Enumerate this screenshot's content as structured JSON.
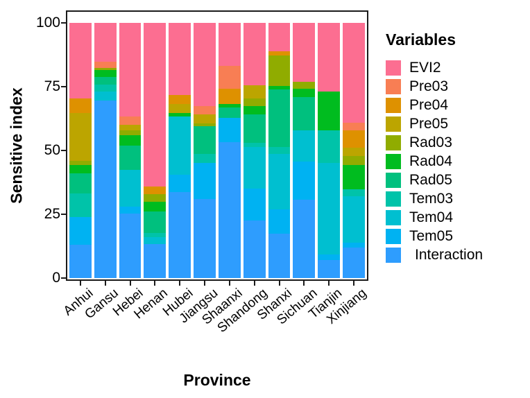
{
  "y_axis": {
    "title": "Sensitive index",
    "tick_values": [
      0,
      25,
      50,
      75,
      100
    ]
  },
  "x_axis": {
    "title": "Province"
  },
  "legend": {
    "title": "Variables",
    "position": "right"
  },
  "chart_data": {
    "type": "bar",
    "stacked": true,
    "title": "",
    "xlabel": "Province",
    "ylabel": "Sensitive index",
    "ylim": [
      0,
      100
    ],
    "y_ticks": [
      0,
      25,
      50,
      75,
      100
    ],
    "grid": false,
    "legend_title": "Variables",
    "legend_position": "right",
    "categories": [
      "Anhui",
      "Gansu",
      "Hebei",
      "Henan",
      "Hubei",
      "Jiangsu",
      "Shaanxi",
      "Shandong",
      "Shanxi",
      "Sichuan",
      "Tianjin",
      "Xinjiang"
    ],
    "series": [
      {
        "name": "EVI2",
        "color": "#FC6E91",
        "values": [
          29.5,
          15.3,
          36.8,
          64.0,
          28.2,
          32.7,
          16.8,
          24.4,
          11.2,
          23.2,
          26.8,
          39.0
        ]
      },
      {
        "name": "Pre03",
        "color": "#F87E54",
        "values": [
          0,
          2.4,
          3.1,
          0,
          0,
          3.2,
          9.1,
          0,
          0,
          0,
          0,
          3.2
        ]
      },
      {
        "name": "Pre04",
        "color": "#DE9100",
        "values": [
          5.9,
          0,
          0,
          3.0,
          3.6,
          0,
          5.9,
          0,
          1.6,
          0,
          0,
          6.8
        ]
      },
      {
        "name": "Pre05",
        "color": "#BCA500",
        "values": [
          18.6,
          0,
          2.3,
          0,
          3.6,
          3.6,
          0,
          5.1,
          0,
          0,
          0,
          3.2
        ]
      },
      {
        "name": "Rad03",
        "color": "#90AC00",
        "values": [
          1.8,
          0.9,
          1.8,
          3.2,
          0,
          1.0,
          0,
          3.0,
          11.8,
          2.7,
          0,
          3.6
        ]
      },
      {
        "name": "Rad04",
        "color": "#00BC1F",
        "values": [
          3.2,
          2.7,
          4.1,
          3.8,
          1.4,
          0,
          1.4,
          3.4,
          1.4,
          3.2,
          15.4,
          9.5
        ]
      },
      {
        "name": "Rad05",
        "color": "#00C07E",
        "values": [
          7.8,
          2.8,
          9.5,
          8.2,
          0,
          10.8,
          4.1,
          11.0,
          22.6,
          13.1,
          0,
          0
        ]
      },
      {
        "name": "Tem03",
        "color": "#00C3A9",
        "values": [
          9.3,
          2.8,
          0,
          1.8,
          0,
          3.6,
          0,
          1.8,
          2.7,
          0,
          12.7,
          2.7
        ]
      },
      {
        "name": "Tem04",
        "color": "#00BFD0",
        "values": [
          0,
          3.5,
          14.5,
          2.8,
          22.6,
          0,
          0,
          16.3,
          21.7,
          12.2,
          35.8,
          18.1
        ]
      },
      {
        "name": "Tem05",
        "color": "#00B2F2",
        "values": [
          10.9,
          0,
          2.7,
          0,
          6.8,
          14.0,
          9.4,
          12.5,
          9.5,
          15.0,
          2.3,
          1.9
        ]
      },
      {
        "name": "Interaction",
        "color": "#2E9DFE",
        "values": [
          13.0,
          69.6,
          25.2,
          13.2,
          33.8,
          31.1,
          53.3,
          22.5,
          17.5,
          30.6,
          7.0,
          12.0
        ]
      }
    ]
  }
}
